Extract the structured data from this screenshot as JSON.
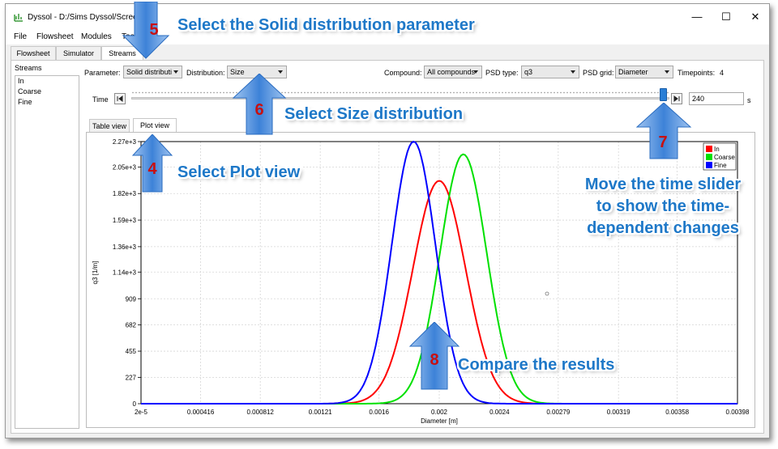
{
  "window": {
    "title": "Dyssol - D:/Sims Dyssol/Screen.d",
    "controls": {
      "minimize": "—",
      "maximize": "☐",
      "close": "✕"
    }
  },
  "menu": [
    "File",
    "Flowsheet",
    "Modules",
    "Tools"
  ],
  "main_tabs": [
    {
      "label": "Flowsheet",
      "active": false
    },
    {
      "label": "Simulator",
      "active": false
    },
    {
      "label": "Streams",
      "active": true
    }
  ],
  "streams": {
    "header": "Streams",
    "items": [
      "In",
      "Coarse",
      "Fine"
    ]
  },
  "toolbar": {
    "parameter_label": "Parameter:",
    "parameter_value": "Solid distributi",
    "distribution_label": "Distribution:",
    "distribution_value": "Size",
    "compound_label": "Compound:",
    "compound_value": "All compounds",
    "psd_type_label": "PSD type:",
    "psd_type_value": "q3",
    "psd_grid_label": "PSD grid:",
    "psd_grid_value": "Diameter",
    "timepoints_label": "Timepoints:",
    "timepoints_value": "4"
  },
  "time": {
    "label": "Time",
    "value": "240",
    "unit": "s",
    "slider_fraction": 1.0
  },
  "view_tabs": [
    {
      "label": "Table view",
      "active": false
    },
    {
      "label": "Plot view",
      "active": true
    }
  ],
  "chart_data": {
    "type": "line",
    "title": "",
    "xlabel": "Diameter [m]",
    "ylabel": "q3 [1/m]",
    "xlim": [
      2e-05,
      0.00398
    ],
    "ylim": [
      0,
      2270
    ],
    "x_tick_labels": [
      "2e-5",
      "0.000416",
      "0.000812",
      "0.00121",
      "0.0016",
      "0.002",
      "0.0024",
      "0.00279",
      "0.00319",
      "0.00358",
      "0.00398"
    ],
    "x_tick_values": [
      2e-05,
      0.000416,
      0.000812,
      0.00121,
      0.0016,
      0.002,
      0.0024,
      0.00279,
      0.00319,
      0.00358,
      0.00398
    ],
    "y_tick_labels": [
      "0",
      "227",
      "455",
      "682",
      "909",
      "1.14e+3",
      "1.36e+3",
      "1.59e+3",
      "1.82e+3",
      "2.05e+3",
      "2.27e+3"
    ],
    "y_tick_values": [
      0,
      227,
      455,
      682,
      909,
      1140,
      1360,
      1590,
      1820,
      2050,
      2270
    ],
    "grid": true,
    "legend_position": "top-right",
    "series": [
      {
        "name": "In",
        "color": "#ff0000",
        "peak_x": 0.002,
        "peak_y": 1930,
        "sigma": 0.000175
      },
      {
        "name": "Coarse",
        "color": "#00e000",
        "peak_x": 0.00216,
        "peak_y": 2160,
        "sigma": 0.000155
      },
      {
        "name": "Fine",
        "color": "#0000ff",
        "peak_x": 0.00183,
        "peak_y": 2270,
        "sigma": 0.000145
      }
    ]
  },
  "annotations": {
    "a5": {
      "num": "5",
      "text": "Select the Solid distribution parameter"
    },
    "a6": {
      "num": "6",
      "text": "Select Size distribution"
    },
    "a4": {
      "num": "4",
      "text": "Select Plot view"
    },
    "a7": {
      "num": "7",
      "lines": [
        "Move the time slider",
        "to show the time-",
        "dependent changes"
      ]
    },
    "a8": {
      "num": "8",
      "text": "Compare the results"
    },
    "colors": {
      "text": "#1e78c8",
      "number": "#c81010",
      "arrow": "#3d82d8"
    }
  }
}
